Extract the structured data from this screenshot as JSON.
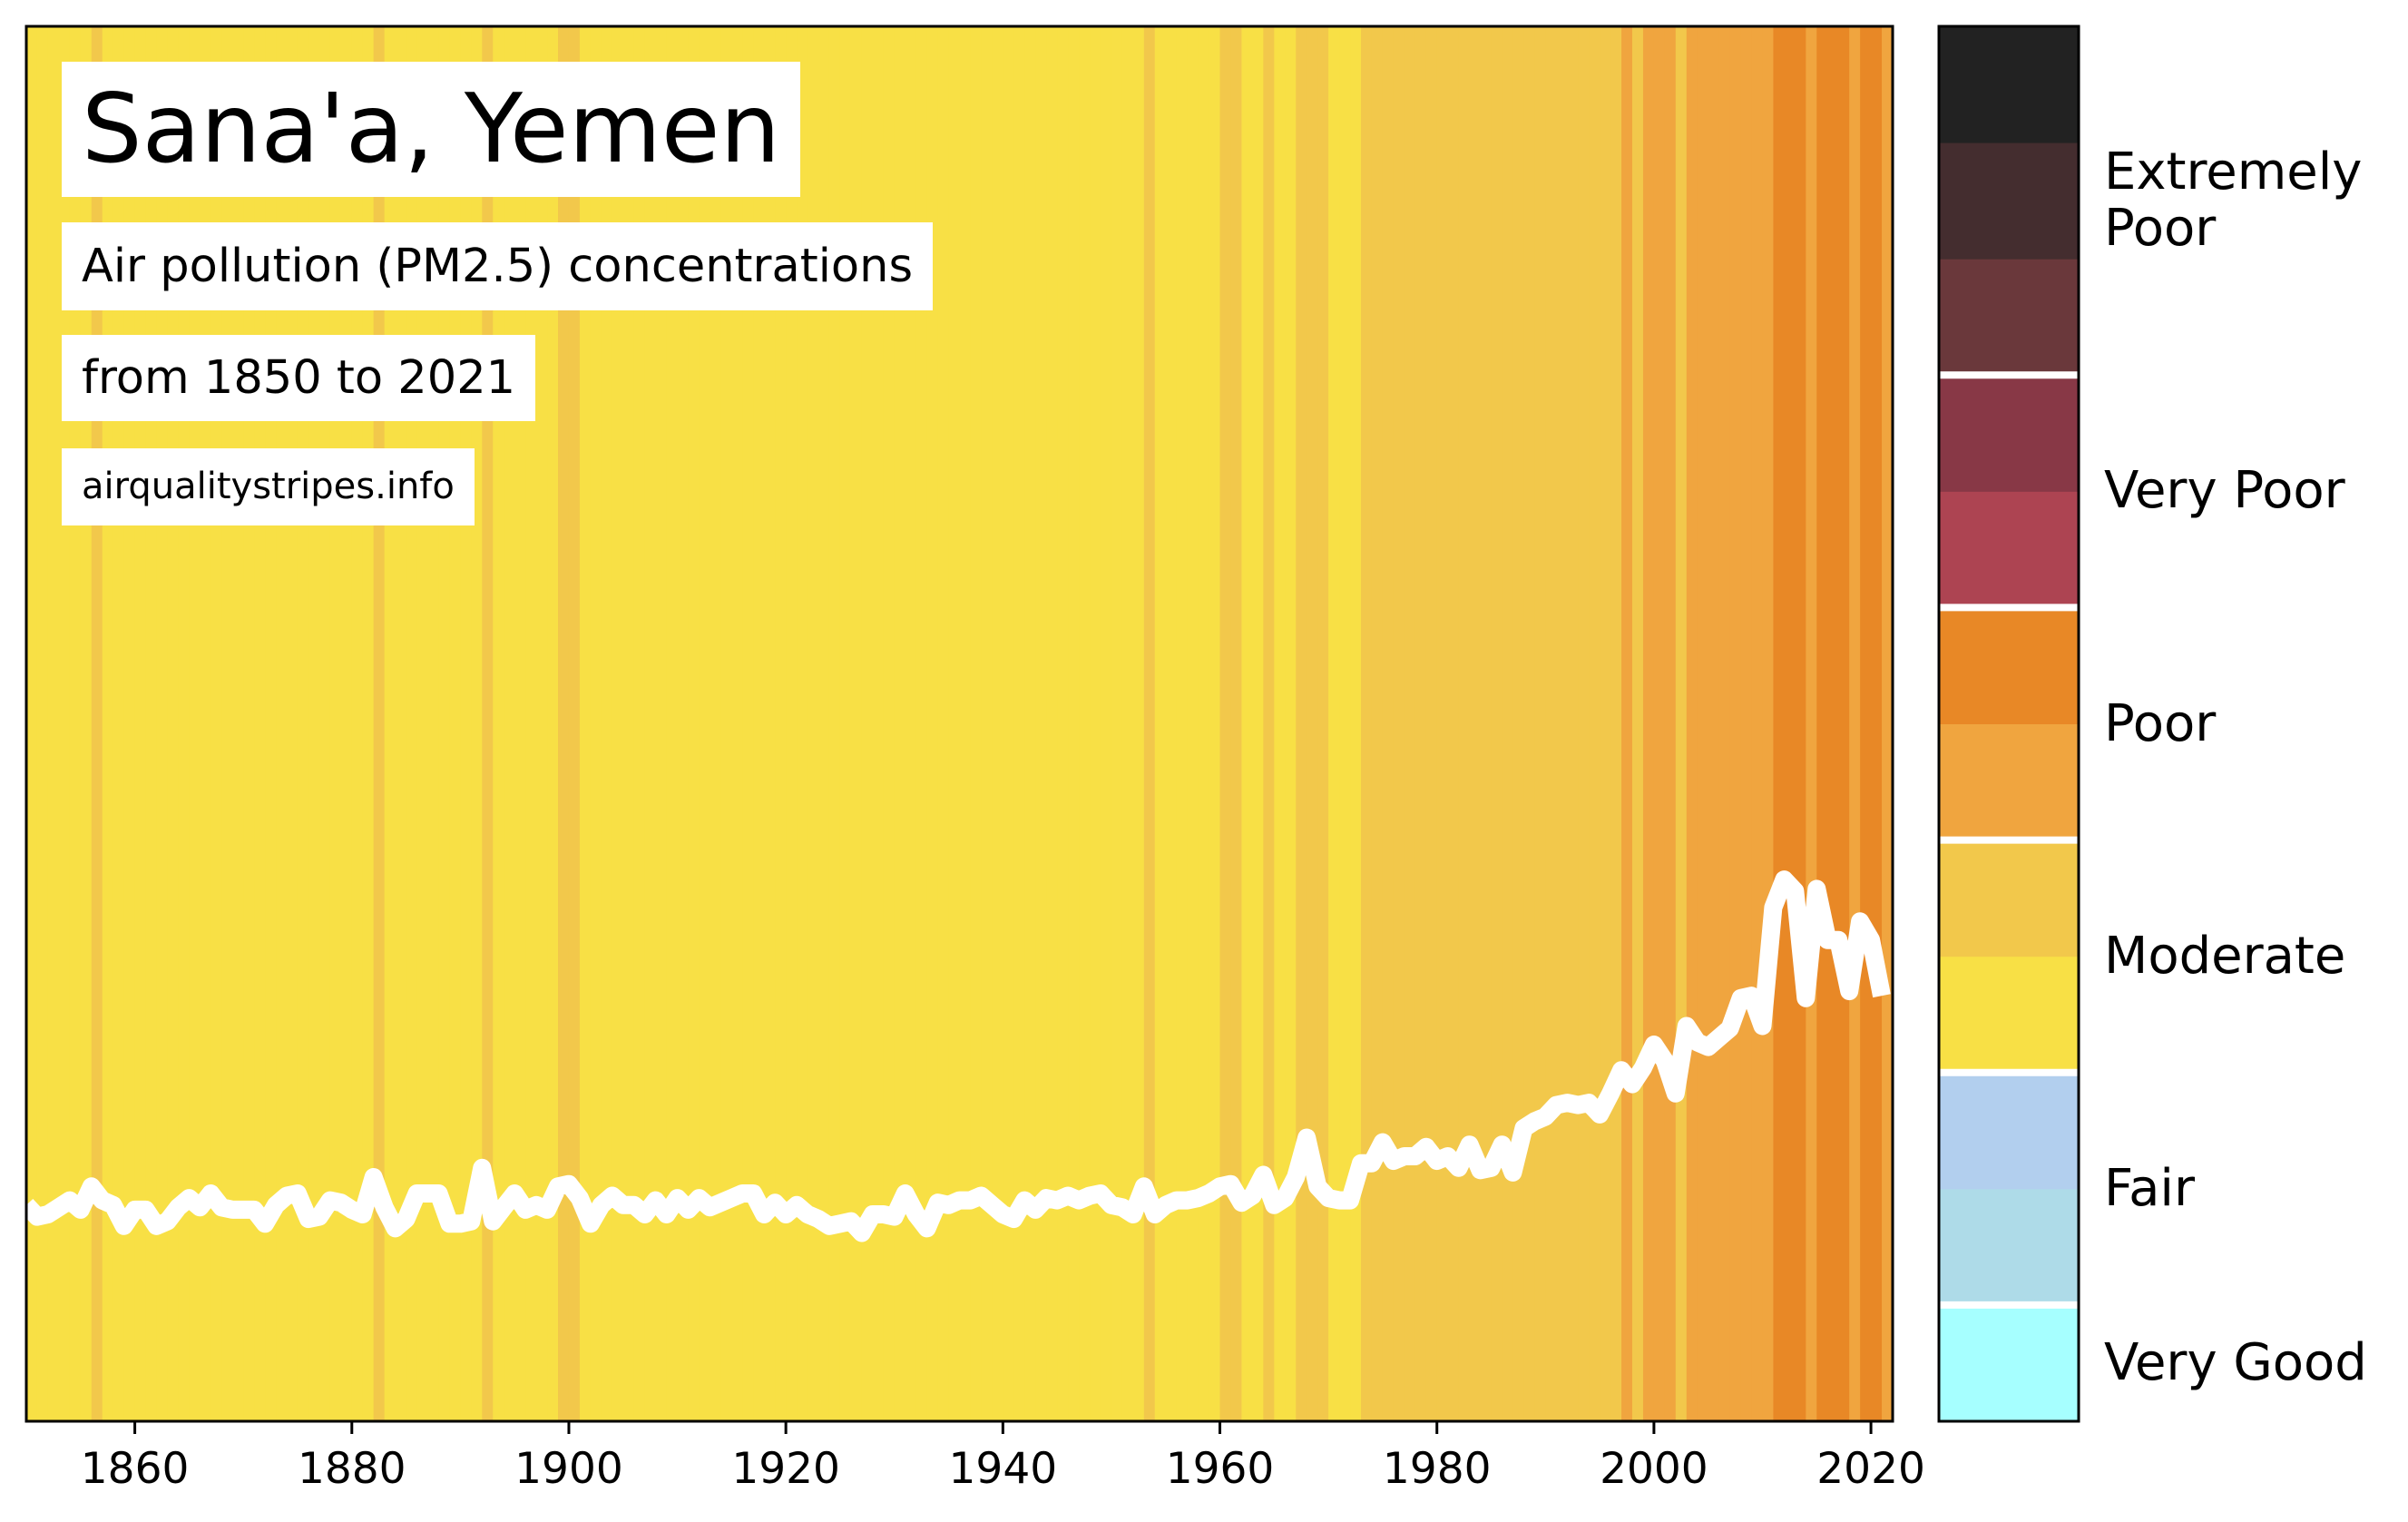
{
  "chart_data": {
    "type": "stripes",
    "title": "Sana'a, Yemen",
    "subtitle": "Air pollution (PM2.5) concentrations",
    "subtitle2": "from 1850 to 2021",
    "source": "airqualitystripes.info",
    "line_color": "#ffffff",
    "x": [
      1850,
      1851,
      1852,
      1853,
      1854,
      1855,
      1856,
      1857,
      1858,
      1859,
      1860,
      1861,
      1862,
      1863,
      1864,
      1865,
      1866,
      1867,
      1868,
      1869,
      1870,
      1871,
      1872,
      1873,
      1874,
      1875,
      1876,
      1877,
      1878,
      1879,
      1880,
      1881,
      1882,
      1883,
      1884,
      1885,
      1886,
      1887,
      1888,
      1889,
      1890,
      1891,
      1892,
      1893,
      1894,
      1895,
      1896,
      1897,
      1898,
      1899,
      1900,
      1901,
      1902,
      1903,
      1904,
      1905,
      1906,
      1907,
      1908,
      1909,
      1910,
      1911,
      1912,
      1913,
      1914,
      1915,
      1916,
      1917,
      1918,
      1919,
      1920,
      1921,
      1922,
      1923,
      1924,
      1925,
      1926,
      1927,
      1928,
      1929,
      1930,
      1931,
      1932,
      1933,
      1934,
      1935,
      1936,
      1937,
      1938,
      1939,
      1940,
      1941,
      1942,
      1943,
      1944,
      1945,
      1946,
      1947,
      1948,
      1949,
      1950,
      1951,
      1952,
      1953,
      1954,
      1955,
      1956,
      1957,
      1958,
      1959,
      1960,
      1961,
      1962,
      1963,
      1964,
      1965,
      1966,
      1967,
      1968,
      1969,
      1970,
      1971,
      1972,
      1973,
      1974,
      1975,
      1976,
      1977,
      1978,
      1979,
      1980,
      1981,
      1982,
      1983,
      1984,
      1985,
      1986,
      1987,
      1988,
      1989,
      1990,
      1991,
      1992,
      1993,
      1994,
      1995,
      1996,
      1997,
      1998,
      1999,
      2000,
      2001,
      2002,
      2003,
      2004,
      2005,
      2006,
      2007,
      2008,
      2009,
      2010,
      2011,
      2012,
      2013,
      2014,
      2015,
      2016,
      2017,
      2018,
      2019,
      2020,
      2021
    ],
    "values": [
      19.3,
      18.8,
      18.9,
      19.2,
      19.5,
      19.1,
      20.1,
      19.5,
      19.3,
      18.4,
      19.1,
      19.1,
      18.4,
      18.6,
      19.2,
      19.6,
      19.2,
      19.8,
      19.2,
      19.1,
      19.1,
      19.1,
      18.5,
      19.3,
      19.7,
      19.8,
      18.7,
      18.8,
      19.5,
      19.4,
      19.1,
      18.9,
      20.5,
      19.2,
      18.3,
      18.7,
      19.8,
      19.8,
      19.8,
      18.5,
      18.5,
      18.6,
      20.9,
      18.6,
      19.2,
      19.8,
      19.1,
      19.3,
      19.1,
      20.1,
      20.2,
      19.6,
      18.5,
      19.3,
      19.7,
      19.3,
      19.3,
      18.9,
      19.5,
      18.9,
      19.6,
      19.1,
      19.6,
      19.2,
      19.4,
      19.6,
      19.8,
      19.8,
      18.9,
      19.4,
      18.9,
      19.3,
      18.9,
      18.7,
      18.4,
      18.5,
      18.6,
      18.1,
      18.9,
      18.9,
      18.8,
      19.8,
      18.9,
      18.3,
      19.4,
      19.3,
      19.5,
      19.5,
      19.7,
      19.3,
      18.9,
      18.7,
      19.5,
      19.1,
      19.6,
      19.5,
      19.7,
      19.5,
      19.7,
      19.8,
      19.3,
      19.2,
      18.9,
      20.1,
      18.9,
      19.3,
      19.5,
      19.5,
      19.6,
      19.8,
      20.1,
      20.2,
      19.4,
      19.7,
      20.6,
      19.3,
      19.6,
      20.5,
      22.2,
      20.1,
      19.6,
      19.5,
      19.5,
      21.1,
      21.1,
      22.0,
      21.2,
      21.4,
      21.4,
      21.8,
      21.2,
      21.4,
      20.9,
      21.9,
      20.8,
      20.9,
      21.9,
      20.7,
      22.6,
      22.9,
      23.1,
      23.6,
      23.7,
      23.6,
      23.7,
      23.2,
      24.1,
      25.1,
      24.5,
      25.2,
      26.2,
      25.5,
      24.1,
      27.0,
      26.3,
      26.1,
      26.5,
      26.9,
      28.2,
      28.3,
      27.0,
      32.1,
      33.3,
      32.8,
      28.2,
      32.9,
      30.7,
      30.7,
      28.5,
      31.5,
      30.7,
      28.3
    ],
    "xlim": [
      1850,
      2022
    ],
    "xticks": [
      1860,
      1880,
      1900,
      1920,
      1940,
      1960,
      1980,
      2000,
      2020
    ],
    "ylim": [
      10,
      70
    ],
    "colorbar": {
      "bins": [
        0,
        5,
        10,
        15,
        20,
        25,
        30,
        35,
        40,
        45,
        50,
        55,
        60
      ],
      "levels": [
        {
          "label": "Very Good",
          "colors": [
            "#a6ffff"
          ]
        },
        {
          "label": "Fair",
          "colors": [
            "#aedbe8",
            "#b2cfee"
          ]
        },
        {
          "label": "Moderate",
          "colors": [
            "#f8e045",
            "#f2c84b"
          ]
        },
        {
          "label": "Poor",
          "colors": [
            "#f0a53f",
            "#e88826"
          ]
        },
        {
          "label": "Very Poor",
          "colors": [
            "#ad4452",
            "#883846"
          ]
        },
        {
          "label": "Extremely Poor",
          "colors": [
            "#6a383b",
            "#442d2f",
            "#222222"
          ]
        }
      ]
    }
  }
}
